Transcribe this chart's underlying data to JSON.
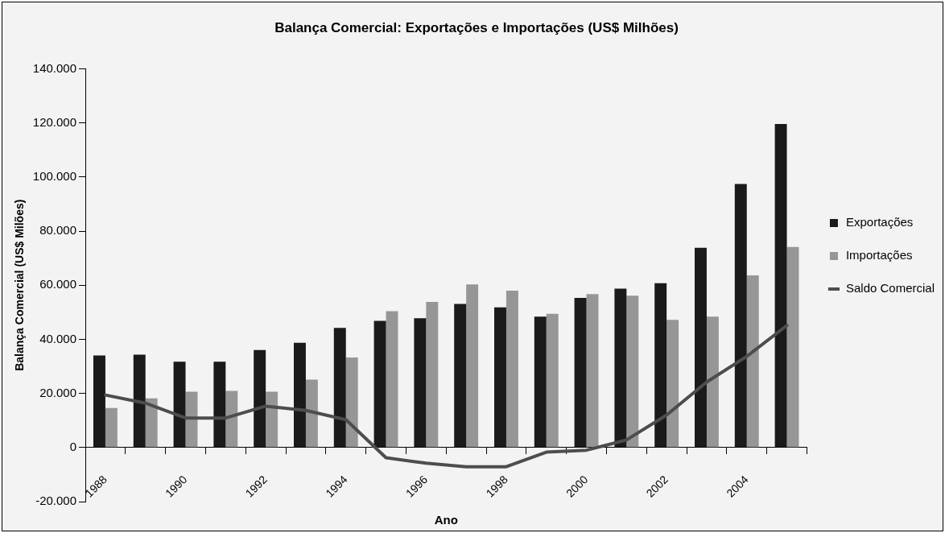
{
  "chart_data": {
    "type": "bar",
    "title": "Balança Comercial: Exportações e Importações (US$ Milhões)",
    "xlabel": "Ano",
    "ylabel": "Balança Comercial (US$ Milões)",
    "categories": [
      "1988",
      null,
      "1990",
      null,
      "1992",
      null,
      "1994",
      null,
      "1996",
      null,
      "1998",
      null,
      "2000",
      null,
      "2002",
      null,
      "2004",
      null
    ],
    "series": [
      {
        "name": "Exportações",
        "color": "#1a1a1a",
        "values": [
          34000,
          34300,
          31700,
          31700,
          36000,
          38700,
          44200,
          46800,
          47800,
          53100,
          51800,
          48400,
          55300,
          58700,
          60700,
          73800,
          97400,
          119600
        ]
      },
      {
        "name": "Importações",
        "color": "#969696",
        "values": [
          14600,
          18200,
          20600,
          20900,
          20600,
          25100,
          33300,
          50400,
          53800,
          60300,
          58000,
          49400,
          56700,
          56100,
          47200,
          48400,
          63600,
          74100
        ]
      },
      {
        "name": "Saldo Comercial",
        "type": "line",
        "color": "#4d4d4d",
        "values": [
          19400,
          16400,
          10900,
          10900,
          15300,
          13700,
          10300,
          -3800,
          -5800,
          -7100,
          -7100,
          -1700,
          -1000,
          2800,
          12000,
          24200,
          33700,
          45100
        ]
      }
    ],
    "ylim": [
      -20000,
      140000
    ],
    "yticks": [
      {
        "value": -20000,
        "label": "-20.000"
      },
      {
        "value": 0,
        "label": "0"
      },
      {
        "value": 20000,
        "label": "20.000"
      },
      {
        "value": 40000,
        "label": "40.000"
      },
      {
        "value": 60000,
        "label": "60.000"
      },
      {
        "value": 80000,
        "label": "80.000"
      },
      {
        "value": 100000,
        "label": "100.000"
      },
      {
        "value": 120000,
        "label": "120.000"
      },
      {
        "value": 140000,
        "label": "140.000"
      }
    ],
    "grid": false,
    "legend": "right"
  }
}
